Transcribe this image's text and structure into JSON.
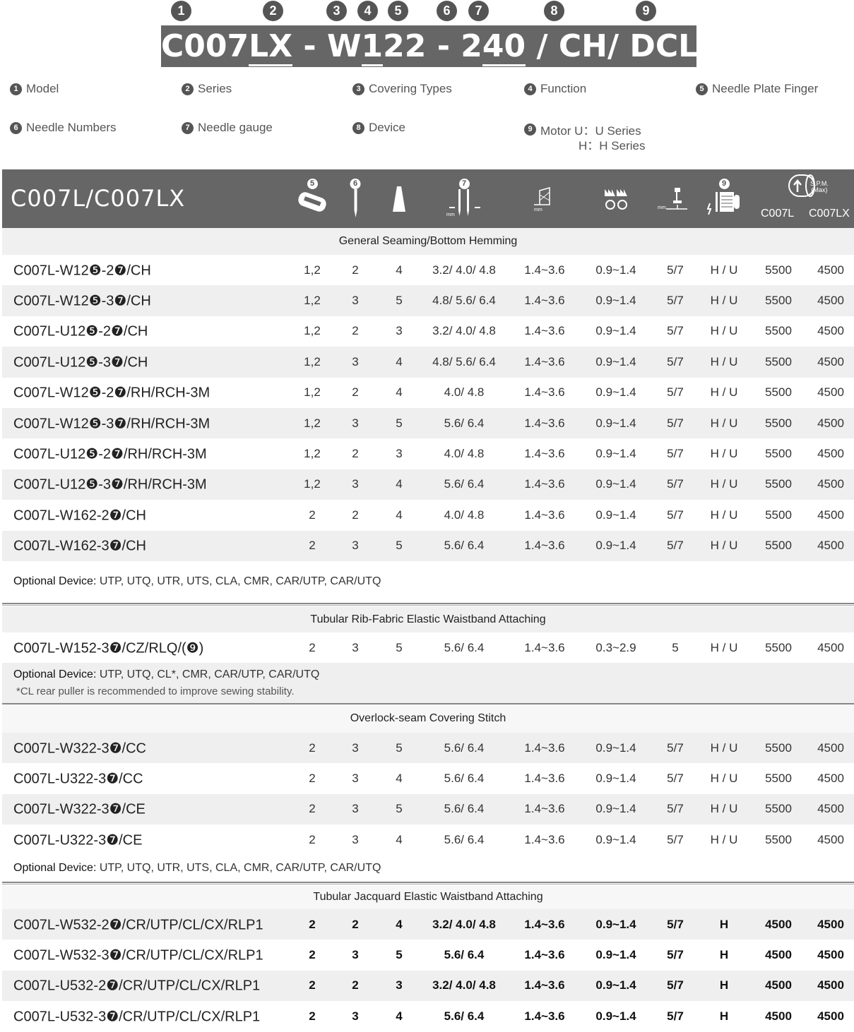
{
  "badges": [
    "1",
    "2",
    "3",
    "4",
    "5",
    "6",
    "7",
    "8",
    "9"
  ],
  "title": {
    "parts": [
      "C007",
      "LX",
      " - W",
      "1",
      "22",
      " - 2",
      "40",
      " / CH/ DCLU"
    ]
  },
  "legend": [
    {
      "n": "1",
      "label": "Model"
    },
    {
      "n": "2",
      "label": "Series"
    },
    {
      "n": "3",
      "label": "Covering Types"
    },
    {
      "n": "4",
      "label": "Function"
    },
    {
      "n": "5",
      "label": "Needle Plate Finger"
    },
    {
      "n": "6",
      "label": "Needle Numbers"
    },
    {
      "n": "7",
      "label": "Needle gauge"
    },
    {
      "n": "8",
      "label": "Device"
    },
    {
      "n": "9",
      "label": "Motor U：U Series"
    }
  ],
  "legend_extra": "H：H  Series",
  "header": {
    "model": "C007L/C007LX",
    "badge5": "5",
    "badge6": "6",
    "badge7": "7",
    "badge9": "9",
    "spm": "S.P.M.",
    "spm_max": "(Max)",
    "col1": "C007L",
    "col2": "C007LX",
    "unit_mm": "mm",
    "icons": [
      "needle-plate-icon",
      "needle-icon",
      "thread-cone-icon",
      "needle-gauge-icon",
      "stitch-length-icon",
      "differential-feed-icon",
      "presser-foot-lift-icon",
      "motor-icon",
      "speed-icon"
    ]
  },
  "colors": {
    "header_bg": "#666666",
    "shaded_row": "#efefef"
  },
  "sections": [
    {
      "title": "General Seaming/Bottom Hemming",
      "rows": [
        [
          "C007L-W12❺-2❼/CH",
          "1,2",
          "2",
          "4",
          "3.2/ 4.0/ 4.8",
          "1.4~3.6",
          "0.9~1.4",
          "5/7",
          "H / U",
          "5500",
          "4500"
        ],
        [
          "C007L-W12❺-3❼/CH",
          "1,2",
          "3",
          "5",
          "4.8/ 5.6/ 6.4",
          "1.4~3.6",
          "0.9~1.4",
          "5/7",
          "H / U",
          "5500",
          "4500"
        ],
        [
          "C007L-U12❺-2❼/CH",
          "1,2",
          "2",
          "3",
          "3.2/ 4.0/ 4.8",
          "1.4~3.6",
          "0.9~1.4",
          "5/7",
          "H / U",
          "5500",
          "4500"
        ],
        [
          "C007L-U12❺-3❼/CH",
          "1,2",
          "3",
          "4",
          "4.8/ 5.6/ 6.4",
          "1.4~3.6",
          "0.9~1.4",
          "5/7",
          "H / U",
          "5500",
          "4500"
        ],
        [
          "C007L-W12❺-2❼/RH/RCH-3M",
          "1,2",
          "2",
          "4",
          "4.0/ 4.8",
          "1.4~3.6",
          "0.9~1.4",
          "5/7",
          "H / U",
          "5500",
          "4500"
        ],
        [
          "C007L-W12❺-3❼/RH/RCH-3M",
          "1,2",
          "3",
          "5",
          "5.6/ 6.4",
          "1.4~3.6",
          "0.9~1.4",
          "5/7",
          "H / U",
          "5500",
          "4500"
        ],
        [
          "C007L-U12❺-2❼/RH/RCH-3M",
          "1,2",
          "2",
          "3",
          "4.0/ 4.8",
          "1.4~3.6",
          "0.9~1.4",
          "5/7",
          "H / U",
          "5500",
          "4500"
        ],
        [
          "C007L-U12❺-3❼/RH/RCH-3M",
          "1,2",
          "3",
          "4",
          "5.6/ 6.4",
          "1.4~3.6",
          "0.9~1.4",
          "5/7",
          "H / U",
          "5500",
          "4500"
        ],
        [
          "C007L-W162-2❼/CH",
          "2",
          "2",
          "4",
          "4.0/ 4.8",
          "1.4~3.6",
          "0.9~1.4",
          "5/7",
          "H / U",
          "5500",
          "4500"
        ],
        [
          "C007L-W162-3❼/CH",
          "2",
          "3",
          "5",
          "5.6/ 6.4",
          "1.4~3.6",
          "0.9~1.4",
          "5/7",
          "H / U",
          "5500",
          "4500"
        ]
      ],
      "optional_label": "Optional Device:",
      "optional": " UTP, UTQ, UTR, UTS, CLA, CMR, CAR/UTP, CAR/UTQ"
    },
    {
      "title": "Tubular Rib-Fabric Elastic Waistband Attaching",
      "rows": [
        [
          "C007L-W152-3❼/CZ/RLQ/(❾)",
          "2",
          "3",
          "5",
          "5.6/ 6.4",
          "1.4~3.6",
          "0.3~2.9",
          "5",
          "H / U",
          "5500",
          "4500"
        ]
      ],
      "optional_label": "Optional Device:",
      "optional": " UTP, UTQ, CL*, CMR, CAR/UTP, CAR/UTQ",
      "footnote": "*CL rear puller is recommended to improve sewing stability."
    },
    {
      "title": "Overlock-seam Covering Stitch",
      "rows": [
        [
          "C007L-W322-3❼/CC",
          "2",
          "3",
          "5",
          "5.6/ 6.4",
          "1.4~3.6",
          "0.9~1.4",
          "5/7",
          "H / U",
          "5500",
          "4500"
        ],
        [
          "C007L-U322-3❼/CC",
          "2",
          "3",
          "4",
          "5.6/ 6.4",
          "1.4~3.6",
          "0.9~1.4",
          "5/7",
          "H / U",
          "5500",
          "4500"
        ],
        [
          "C007L-W322-3❼/CE",
          "2",
          "3",
          "5",
          "5.6/ 6.4",
          "1.4~3.6",
          "0.9~1.4",
          "5/7",
          "H / U",
          "5500",
          "4500"
        ],
        [
          "C007L-U322-3❼/CE",
          "2",
          "3",
          "4",
          "5.6/ 6.4",
          "1.4~3.6",
          "0.9~1.4",
          "5/7",
          "H / U",
          "5500",
          "4500"
        ]
      ],
      "optional_label": "Optional Device:",
      "optional": " UTP, UTQ, UTR, UTS, CLA, CMR, CAR/UTP, CAR/UTQ"
    },
    {
      "title": "Tubular Jacquard Elastic Waistband Attaching",
      "rows": [
        [
          "C007L-W532-2❼/CR/UTP/CL/CX/RLP1",
          "2",
          "2",
          "4",
          "3.2/ 4.0/ 4.8",
          "1.4~3.6",
          "0.9~1.4",
          "5/7",
          "H",
          "4500",
          "4500"
        ],
        [
          "C007L-W532-3❼/CR/UTP/CL/CX/RLP1",
          "2",
          "3",
          "5",
          "5.6/ 6.4",
          "1.4~3.6",
          "0.9~1.4",
          "5/7",
          "H",
          "4500",
          "4500"
        ],
        [
          "C007L-U532-2❼/CR/UTP/CL/CX/RLP1",
          "2",
          "2",
          "3",
          "3.2/ 4.0/ 4.8",
          "1.4~3.6",
          "0.9~1.4",
          "5/7",
          "H",
          "4500",
          "4500"
        ],
        [
          "C007L-U532-3❼/CR/UTP/CL/CX/RLP1",
          "2",
          "3",
          "4",
          "5.6/ 6.4",
          "1.4~3.6",
          "0.9~1.4",
          "5/7",
          "H",
          "4500",
          "4500"
        ]
      ]
    }
  ]
}
